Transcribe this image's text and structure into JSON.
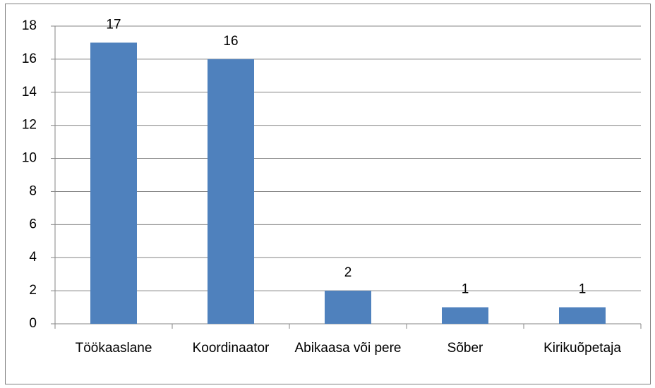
{
  "chart_data": {
    "type": "bar",
    "categories": [
      "Töökaaslane",
      "Koordinaator",
      "Abikaasa või pere",
      "Sõber",
      "Kirikuõpetaja"
    ],
    "values": [
      17,
      16,
      2,
      1,
      1
    ],
    "color": "#4f81bd",
    "ylim": [
      0,
      18
    ],
    "yticks": [
      0,
      2,
      4,
      6,
      8,
      10,
      12,
      14,
      16,
      18
    ],
    "grid": true,
    "data_labels": true
  }
}
